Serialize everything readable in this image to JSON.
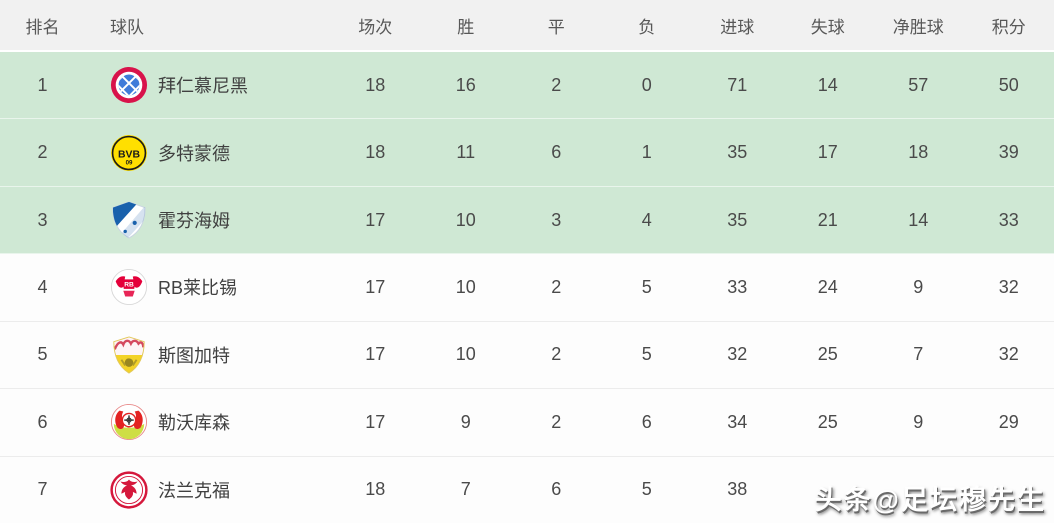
{
  "table": {
    "columns": [
      {
        "key": "rank",
        "label": "排名"
      },
      {
        "key": "team",
        "label": "球队"
      },
      {
        "key": "played",
        "label": "场次"
      },
      {
        "key": "win",
        "label": "胜"
      },
      {
        "key": "draw",
        "label": "平"
      },
      {
        "key": "loss",
        "label": "负"
      },
      {
        "key": "gf",
        "label": "进球"
      },
      {
        "key": "ga",
        "label": "失球"
      },
      {
        "key": "gd",
        "label": "净胜球"
      },
      {
        "key": "pts",
        "label": "积分"
      }
    ],
    "rows": [
      {
        "rank": "1",
        "team": "拜仁慕尼黑",
        "badge": "bayern",
        "played": "18",
        "win": "16",
        "draw": "2",
        "loss": "0",
        "gf": "71",
        "ga": "14",
        "gd": "57",
        "pts": "50",
        "highlight": true
      },
      {
        "rank": "2",
        "team": "多特蒙德",
        "badge": "dortmund",
        "played": "18",
        "win": "11",
        "draw": "6",
        "loss": "1",
        "gf": "35",
        "ga": "17",
        "gd": "18",
        "pts": "39",
        "highlight": true
      },
      {
        "rank": "3",
        "team": "霍芬海姆",
        "badge": "hoffenheim",
        "played": "17",
        "win": "10",
        "draw": "3",
        "loss": "4",
        "gf": "35",
        "ga": "21",
        "gd": "14",
        "pts": "33",
        "highlight": true
      },
      {
        "rank": "4",
        "team": "RB莱比锡",
        "badge": "leipzig",
        "played": "17",
        "win": "10",
        "draw": "2",
        "loss": "5",
        "gf": "33",
        "ga": "24",
        "gd": "9",
        "pts": "32",
        "highlight": false
      },
      {
        "rank": "5",
        "team": "斯图加特",
        "badge": "stuttgart",
        "played": "17",
        "win": "10",
        "draw": "2",
        "loss": "5",
        "gf": "32",
        "ga": "25",
        "gd": "7",
        "pts": "32",
        "highlight": false
      },
      {
        "rank": "6",
        "team": "勒沃库森",
        "badge": "leverkusen",
        "played": "17",
        "win": "9",
        "draw": "2",
        "loss": "6",
        "gf": "34",
        "ga": "25",
        "gd": "9",
        "pts": "29",
        "highlight": false
      },
      {
        "rank": "7",
        "team": "法兰克福",
        "badge": "frankfurt",
        "played": "18",
        "win": "7",
        "draw": "6",
        "loss": "5",
        "gf": "38",
        "ga": "",
        "gd": "",
        "pts": "",
        "highlight": false
      }
    ]
  },
  "watermark": {
    "text": "头条@足坛穆先生"
  },
  "colors": {
    "highlight_row": "#cfe8d4",
    "header_bg": "#f1f1f1",
    "row_bg": "#fdfdfd",
    "row_border": "#ececec",
    "text": "#4a4a4a",
    "watermark_text": "#ffffff"
  }
}
